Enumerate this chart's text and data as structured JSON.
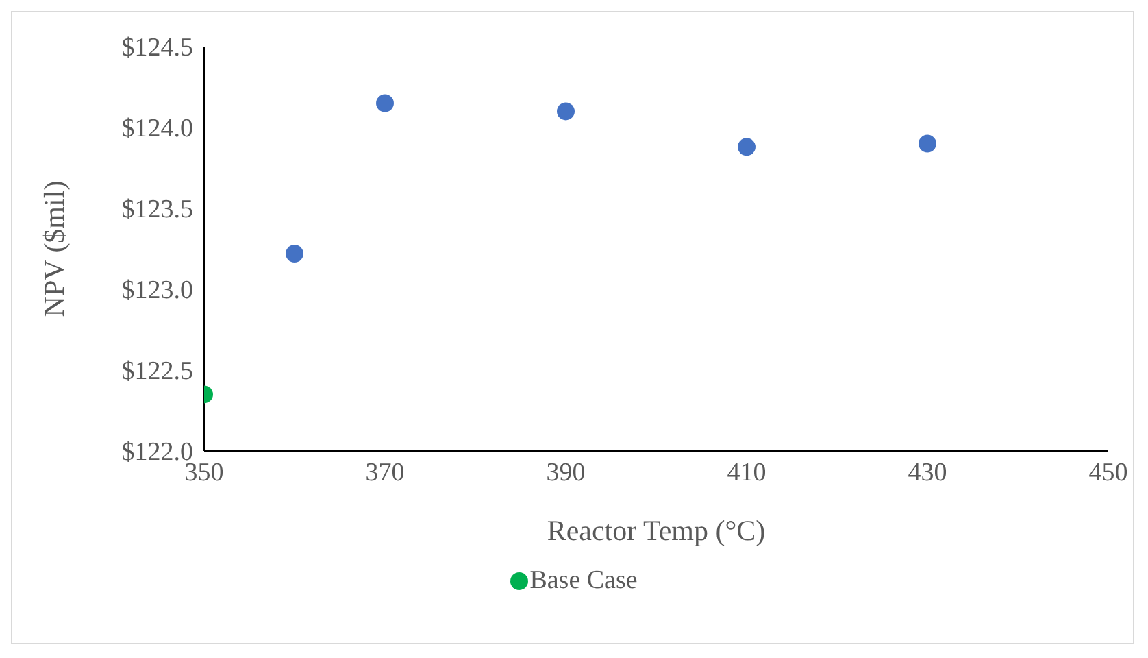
{
  "chart_data": {
    "type": "scatter",
    "xlabel": "Reactor Temp (°C)",
    "ylabel": "NPV ($mil)",
    "xlim": [
      350,
      450
    ],
    "xticks": [
      350,
      370,
      390,
      410,
      430,
      450
    ],
    "ylim": [
      122.0,
      124.5
    ],
    "yticks": [
      {
        "value": 122.0,
        "label": "$122.0"
      },
      {
        "value": 122.5,
        "label": "$122.5"
      },
      {
        "value": 123.0,
        "label": "$123.0"
      },
      {
        "value": 123.5,
        "label": "$123.5"
      },
      {
        "value": 124.0,
        "label": "$124.0"
      },
      {
        "value": 124.5,
        "label": "$124.5"
      }
    ],
    "grid": false,
    "legend": "bottom",
    "marker": "circle",
    "series": [
      {
        "color": "#4472c4",
        "x": [
          360,
          370,
          390,
          410,
          430
        ],
        "values": [
          123.22,
          124.15,
          124.1,
          123.88,
          123.9
        ]
      },
      {
        "name": "Base Case",
        "color": "#00b050",
        "x": [
          350
        ],
        "values": [
          122.35
        ]
      }
    ]
  }
}
